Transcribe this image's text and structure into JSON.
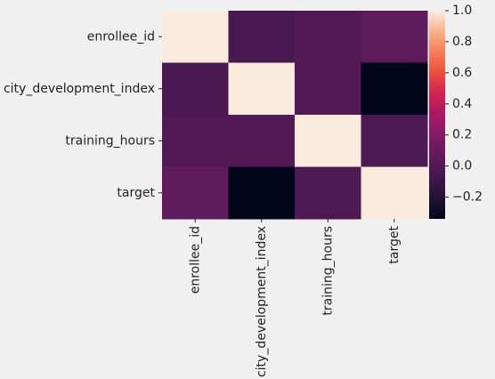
{
  "chart_data": {
    "type": "heatmap",
    "title": "",
    "xlabel": "",
    "ylabel": "",
    "row_labels": [
      "enrollee_id",
      "city_development_index",
      "training_hours",
      "target"
    ],
    "col_labels": [
      "enrollee_id",
      "city_development_index",
      "training_hours",
      "target"
    ],
    "values": [
      [
        1.0,
        -0.04,
        0.0,
        0.05
      ],
      [
        -0.04,
        1.0,
        0.0,
        -0.34
      ],
      [
        0.0,
        0.0,
        1.0,
        -0.02
      ],
      [
        0.05,
        -0.34,
        -0.02,
        1.0
      ]
    ],
    "colorbar": {
      "min": -0.34,
      "max": 1.0,
      "ticks": [
        -0.2,
        0.0,
        0.2,
        0.4,
        0.6,
        0.8,
        1.0
      ],
      "tick_labels": [
        "−0.2",
        "0.0",
        "0.2",
        "0.4",
        "0.6",
        "0.8",
        "1.0"
      ]
    },
    "colormap": "rocket",
    "grid": false
  }
}
